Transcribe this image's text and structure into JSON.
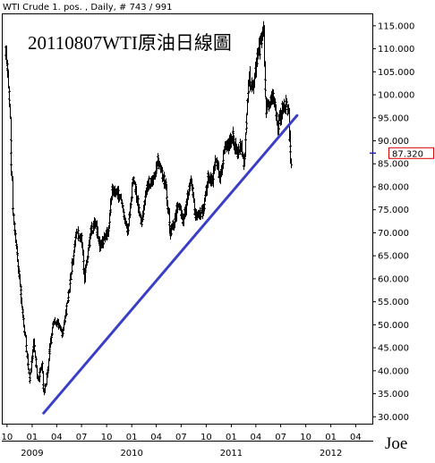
{
  "header": {
    "text": "WTI Crude 1. pos. , Daily, # 743 / 991"
  },
  "title": "20110807WTI原油日線圖",
  "signature": "Joe",
  "chart_data": {
    "type": "ohlc-bar",
    "title": "20110807WTI原油日線圖",
    "xlabel": "",
    "ylabel": "",
    "ylim": [
      28.5,
      117.5
    ],
    "y_ticks": [
      "30.000",
      "35.000",
      "40.000",
      "45.000",
      "50.000",
      "55.000",
      "60.000",
      "65.000",
      "70.000",
      "75.000",
      "80.000",
      "85.000",
      "90.000",
      "95.000",
      "100.000",
      "105.000",
      "110.000",
      "115.000"
    ],
    "y_tick_values": [
      30,
      35,
      40,
      45,
      50,
      55,
      60,
      65,
      70,
      75,
      80,
      85,
      90,
      95,
      100,
      105,
      110,
      115
    ],
    "x_ticks": [
      "10",
      "01",
      "04",
      "07",
      "10",
      "01",
      "04",
      "07",
      "10",
      "01",
      "04",
      "07",
      "10",
      "01",
      "04"
    ],
    "x_tick_months": [
      "2008-10",
      "2009-01",
      "2009-04",
      "2009-07",
      "2009-10",
      "2010-01",
      "2010-04",
      "2010-07",
      "2010-10",
      "2011-01",
      "2011-04",
      "2011-07",
      "2011-10",
      "2012-01",
      "2012-04"
    ],
    "year_labels": [
      "2009",
      "2010",
      "2011",
      "2012"
    ],
    "year_label_months": [
      "2009-01",
      "2010-01",
      "2011-01",
      "2012-01"
    ],
    "grid": false,
    "price_series": [
      [
        "2008-09-25",
        110
      ],
      [
        "2008-10-08",
        99
      ],
      [
        "2008-10-20",
        75
      ],
      [
        "2008-11-10",
        63
      ],
      [
        "2008-11-25",
        53
      ],
      [
        "2008-12-10",
        44
      ],
      [
        "2008-12-22",
        38
      ],
      [
        "2009-01-06",
        46
      ],
      [
        "2009-01-20",
        38
      ],
      [
        "2009-02-05",
        41
      ],
      [
        "2009-02-12",
        35
      ],
      [
        "2009-02-24",
        39
      ],
      [
        "2009-03-06",
        45
      ],
      [
        "2009-03-20",
        51
      ],
      [
        "2009-04-06",
        50
      ],
      [
        "2009-04-20",
        48
      ],
      [
        "2009-05-05",
        53
      ],
      [
        "2009-05-20",
        60
      ],
      [
        "2009-06-10",
        70
      ],
      [
        "2009-06-30",
        69
      ],
      [
        "2009-07-10",
        60
      ],
      [
        "2009-07-20",
        64
      ],
      [
        "2009-08-05",
        71
      ],
      [
        "2009-08-20",
        72
      ],
      [
        "2009-09-05",
        67
      ],
      [
        "2009-09-20",
        69
      ],
      [
        "2009-10-05",
        70
      ],
      [
        "2009-10-20",
        79
      ],
      [
        "2009-11-05",
        79
      ],
      [
        "2009-11-20",
        77
      ],
      [
        "2009-12-05",
        73
      ],
      [
        "2009-12-15",
        70
      ],
      [
        "2010-01-06",
        82
      ],
      [
        "2010-01-20",
        77
      ],
      [
        "2010-02-05",
        72
      ],
      [
        "2010-02-20",
        79
      ],
      [
        "2010-03-05",
        81
      ],
      [
        "2010-03-20",
        81
      ],
      [
        "2010-04-06",
        86
      ],
      [
        "2010-04-20",
        83
      ],
      [
        "2010-05-05",
        80
      ],
      [
        "2010-05-20",
        70
      ],
      [
        "2010-06-05",
        72
      ],
      [
        "2010-06-20",
        77
      ],
      [
        "2010-07-06",
        72
      ],
      [
        "2010-07-20",
        77
      ],
      [
        "2010-08-05",
        82
      ],
      [
        "2010-08-20",
        74
      ],
      [
        "2010-09-05",
        74
      ],
      [
        "2010-09-20",
        75
      ],
      [
        "2010-10-06",
        82
      ],
      [
        "2010-10-20",
        81
      ],
      [
        "2010-11-05",
        86
      ],
      [
        "2010-11-20",
        82
      ],
      [
        "2010-12-05",
        88
      ],
      [
        "2010-12-20",
        89
      ],
      [
        "2011-01-05",
        91
      ],
      [
        "2011-01-20",
        87
      ],
      [
        "2011-02-05",
        89
      ],
      [
        "2011-02-15",
        84
      ],
      [
        "2011-03-05",
        104
      ],
      [
        "2011-03-20",
        101
      ],
      [
        "2011-04-05",
        108
      ],
      [
        "2011-04-20",
        112
      ],
      [
        "2011-04-29",
        114
      ],
      [
        "2011-05-06",
        97
      ],
      [
        "2011-05-20",
        98
      ],
      [
        "2011-06-05",
        100
      ],
      [
        "2011-06-20",
        93
      ],
      [
        "2011-07-05",
        97
      ],
      [
        "2011-07-20",
        98
      ],
      [
        "2011-07-29",
        96
      ],
      [
        "2011-08-04",
        87
      ],
      [
        "2011-08-08",
        84
      ]
    ],
    "trendline": {
      "name": "",
      "color": "#3a3fc8",
      "points": [
        [
          "2009-02-12",
          30.8
        ],
        [
          "2011-08-30",
          95.5
        ]
      ]
    },
    "last_price": "87.320",
    "last_price_value": 87.32,
    "colors": {
      "bars": "#000000",
      "trendline": "#3a3fc8",
      "last_price_box": "#e00000",
      "last_price_tick": "#2222cc"
    }
  }
}
